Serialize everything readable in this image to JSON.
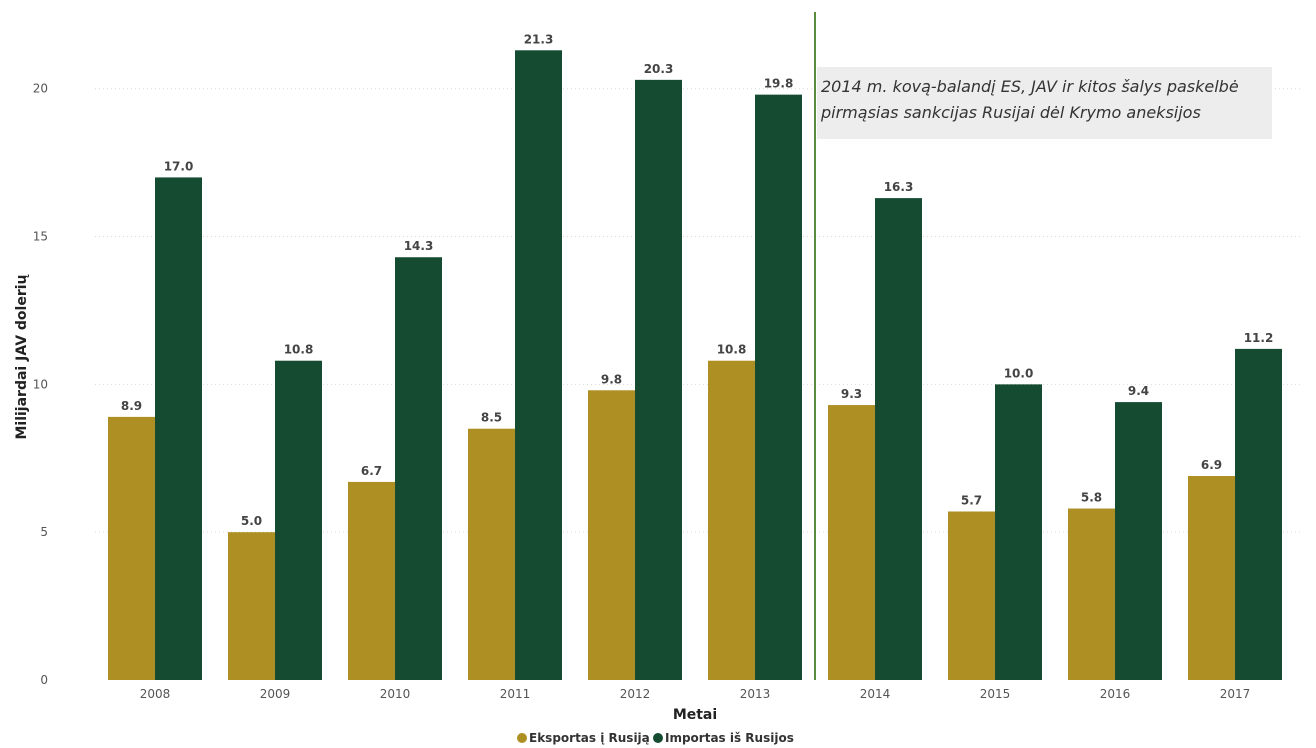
{
  "chart_data": {
    "type": "bar",
    "title": "",
    "xlabel": "Metai",
    "ylabel": "Milijardai JAV dolerių",
    "categories": [
      "2008",
      "2009",
      "2010",
      "2011",
      "2012",
      "2013",
      "2014",
      "2015",
      "2016",
      "2017"
    ],
    "ylim": [
      0,
      22
    ],
    "yticks": [
      "0",
      "5",
      "10",
      "15",
      "20"
    ],
    "grid": true,
    "legend_position": "bottom-center",
    "series": [
      {
        "name": "Eksportas į Rusiją",
        "color": "#ad8f23",
        "values": [
          8.9,
          5.0,
          6.7,
          8.5,
          9.8,
          10.8,
          9.3,
          5.7,
          5.8,
          6.9
        ],
        "labels": [
          "8.9",
          "5.0",
          "6.7",
          "8.5",
          "9.8",
          "10.8",
          "9.3",
          "5.7",
          "5.8",
          "6.9"
        ]
      },
      {
        "name": "Importas iš Rusijos",
        "color": "#144b31",
        "values": [
          17.0,
          10.8,
          14.3,
          21.3,
          20.3,
          19.8,
          16.3,
          10.0,
          9.4,
          11.2
        ],
        "labels": [
          "17.0",
          "10.8",
          "14.3",
          "21.3",
          "20.3",
          "19.8",
          "16.3",
          "10.0",
          "9.4",
          "11.2"
        ]
      }
    ],
    "annotation": {
      "after_category": "2013",
      "line_color": "#5b8c3e",
      "lines": [
        "2014 m. kovą-balandį ES, JAV ir kitos šalys paskelbė",
        "pirmąsias sankcijas Rusijai dėl Krymo aneksijos"
      ]
    }
  }
}
